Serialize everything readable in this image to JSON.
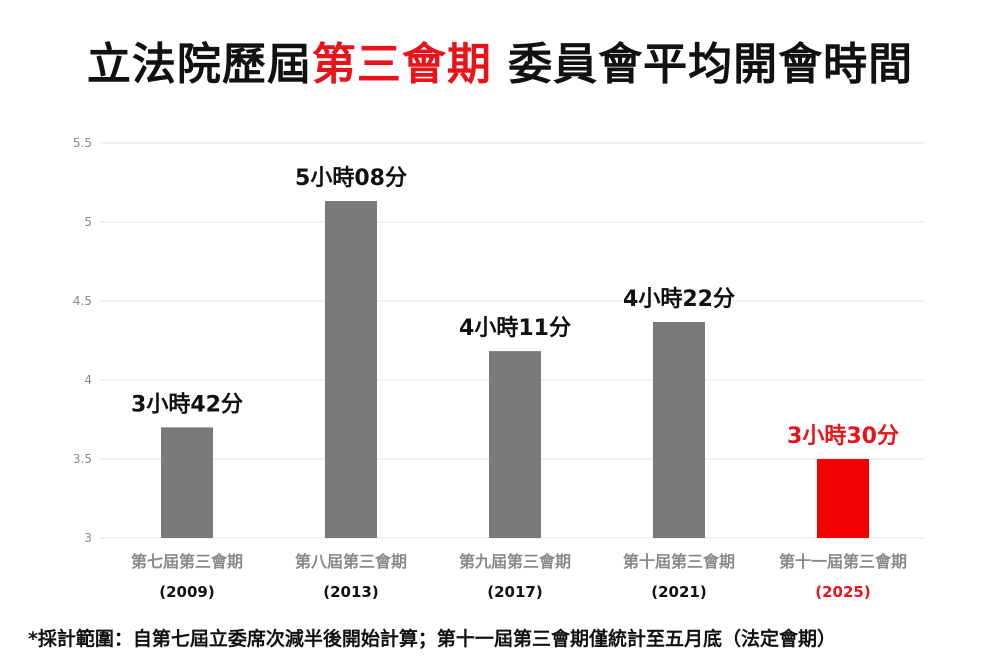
{
  "title": {
    "prefix": "立法院歷屆",
    "highlight": "第三會期",
    "suffix": " 委員會平均開會時間"
  },
  "colors": {
    "bar": "#7a7a7a",
    "highlight": "#f50000",
    "text": "#111111",
    "grid": "#e3e3e3",
    "tick": "#8a8a8a"
  },
  "chart_data": {
    "type": "bar",
    "categories": [
      "第七屆第三會期",
      "第八屆第三會期",
      "第九屆第三會期",
      "第十屆第三會期",
      "第十一屆第三會期"
    ],
    "category_years": [
      "(2009)",
      "(2013)",
      "(2017)",
      "(2021)",
      "(2025)"
    ],
    "values": [
      3.7,
      5.133,
      4.183,
      4.367,
      3.5
    ],
    "data_labels": [
      "3小時42分",
      "5小時08分",
      "4小時11分",
      "4小時22分",
      "3小時30分"
    ],
    "highlight_index": 4,
    "ylim": [
      3,
      5.5
    ],
    "yticks": [
      "3",
      "3.5",
      "4",
      "4.5",
      "5",
      "5.5"
    ],
    "grid": true
  },
  "footnote": "*採計範圍：自第七屆立委席次減半後開始計算；第十一屆第三會期僅統計至五月底（法定會期）"
}
